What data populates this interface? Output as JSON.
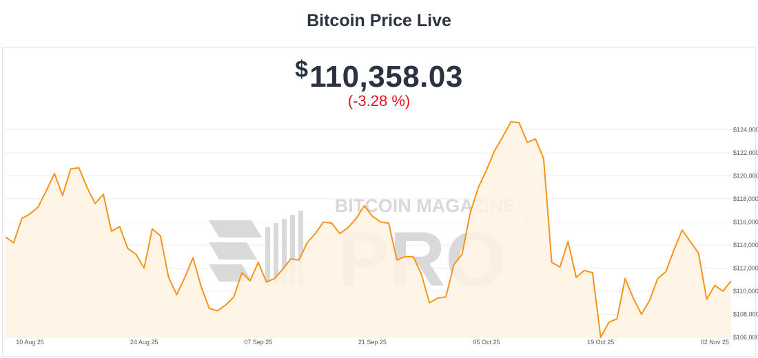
{
  "page": {
    "title": "Bitcoin Price Live",
    "currency_symbol": "$",
    "price": "110,358.03",
    "change": "(-3.28 %)"
  },
  "watermark": {
    "line1": "BITCOIN MAGAZINE",
    "line2": "PRO",
    "mark": "®"
  },
  "colors": {
    "line": "#f7931a",
    "fill": "#fff3e3",
    "change": "#e8141c",
    "text": "#2b3340",
    "grid": "#ececec"
  },
  "chart_data": {
    "type": "area",
    "title": "",
    "xlabel": "",
    "ylabel": "",
    "ylim": [
      106000,
      124800
    ],
    "y_ticks": [
      "$106,000",
      "$108,000",
      "$110,000",
      "$112,000",
      "$114,000",
      "$116,000",
      "$118,000",
      "$120,000",
      "$122,000",
      "$124,000"
    ],
    "x_ticks": [
      {
        "label": "10 Aug 25",
        "date": "2025-08-10"
      },
      {
        "label": "24 Aug 25",
        "date": "2025-08-24"
      },
      {
        "label": "07 Sep 25",
        "date": "2025-09-07"
      },
      {
        "label": "21 Sep 25",
        "date": "2025-09-21"
      },
      {
        "label": "05 Oct 25",
        "date": "2025-10-05"
      },
      {
        "label": "19 Oct 25",
        "date": "2025-10-19"
      },
      {
        "label": "02 Nov 25",
        "date": "2025-11-02"
      }
    ],
    "grid": true,
    "legend": "none",
    "series": [
      {
        "x": [
          "2025-08-07",
          "2025-08-08",
          "2025-08-09",
          "2025-08-10",
          "2025-08-11",
          "2025-08-12",
          "2025-08-13",
          "2025-08-14",
          "2025-08-15",
          "2025-08-16",
          "2025-08-17",
          "2025-08-18",
          "2025-08-19",
          "2025-08-20",
          "2025-08-21",
          "2025-08-22",
          "2025-08-23",
          "2025-08-24",
          "2025-08-25",
          "2025-08-26",
          "2025-08-27",
          "2025-08-28",
          "2025-08-29",
          "2025-08-30",
          "2025-08-31",
          "2025-09-01",
          "2025-09-02",
          "2025-09-03",
          "2025-09-04",
          "2025-09-05",
          "2025-09-06",
          "2025-09-07",
          "2025-09-08",
          "2025-09-09",
          "2025-09-10",
          "2025-09-11",
          "2025-09-12",
          "2025-09-13",
          "2025-09-14",
          "2025-09-15",
          "2025-09-16",
          "2025-09-17",
          "2025-09-18",
          "2025-09-19",
          "2025-09-20",
          "2025-09-21",
          "2025-09-22",
          "2025-09-23",
          "2025-09-24",
          "2025-09-25",
          "2025-09-26",
          "2025-09-27",
          "2025-09-28",
          "2025-09-29",
          "2025-09-30",
          "2025-10-01",
          "2025-10-02",
          "2025-10-03",
          "2025-10-04",
          "2025-10-05",
          "2025-10-06",
          "2025-10-07",
          "2025-10-08",
          "2025-10-09",
          "2025-10-10",
          "2025-10-11",
          "2025-10-12",
          "2025-10-13",
          "2025-10-14",
          "2025-10-15",
          "2025-10-16",
          "2025-10-17",
          "2025-10-18",
          "2025-10-19",
          "2025-10-20",
          "2025-10-21",
          "2025-10-22",
          "2025-10-23",
          "2025-10-24",
          "2025-10-25",
          "2025-10-26",
          "2025-10-27",
          "2025-10-28",
          "2025-10-29",
          "2025-10-30",
          "2025-10-31",
          "2025-11-01",
          "2025-11-02",
          "2025-11-03",
          "2025-11-04"
        ],
        "values": [
          114700,
          114200,
          116300,
          116700,
          117300,
          118700,
          120200,
          118300,
          120600,
          120700,
          119000,
          117600,
          118400,
          115200,
          115600,
          113700,
          113200,
          112000,
          115400,
          114800,
          111200,
          109700,
          111200,
          112900,
          110400,
          108500,
          108300,
          108800,
          109500,
          111600,
          110900,
          112500,
          110800,
          111100,
          111900,
          112800,
          112700,
          114200,
          115000,
          116000,
          115900,
          115000,
          115500,
          116300,
          117400,
          116500,
          116000,
          115900,
          112700,
          113000,
          113000,
          111500,
          109000,
          109400,
          109500,
          112300,
          113200,
          116800,
          119000,
          120500,
          122200,
          123400,
          124700,
          124600,
          122900,
          123200,
          121500,
          112500,
          112100,
          114300,
          111200,
          111800,
          111600,
          106000,
          107300,
          107600,
          111100,
          109400,
          108000,
          109200,
          111100,
          111700,
          113600,
          115300,
          114300,
          113300,
          109300,
          110500,
          110000,
          110900
        ]
      }
    ]
  }
}
